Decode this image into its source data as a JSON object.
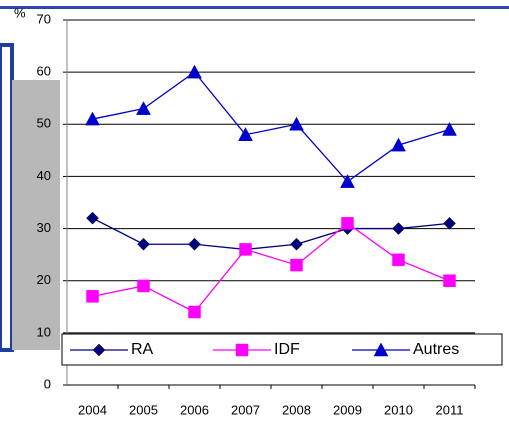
{
  "chart_data": {
    "type": "line",
    "y_label": "%",
    "categories": [
      "2004",
      "2005",
      "2006",
      "2007",
      "2008",
      "2009",
      "2010",
      "2011"
    ],
    "series": [
      {
        "name": "RA",
        "color": "#000080",
        "marker": "diamond",
        "values": [
          32,
          27,
          27,
          26,
          27,
          30,
          30,
          31
        ]
      },
      {
        "name": "IDF",
        "color": "#ff00ff",
        "marker": "square",
        "values": [
          17,
          19,
          14,
          26,
          23,
          31,
          24,
          20
        ]
      },
      {
        "name": "Autres",
        "color": "#0000cc",
        "marker": "triangle",
        "values": [
          51,
          53,
          60,
          48,
          50,
          39,
          46,
          49
        ]
      }
    ],
    "ylim": [
      0,
      70
    ],
    "yticks": [
      0,
      10,
      20,
      30,
      40,
      50,
      60,
      70
    ],
    "grid": true
  }
}
